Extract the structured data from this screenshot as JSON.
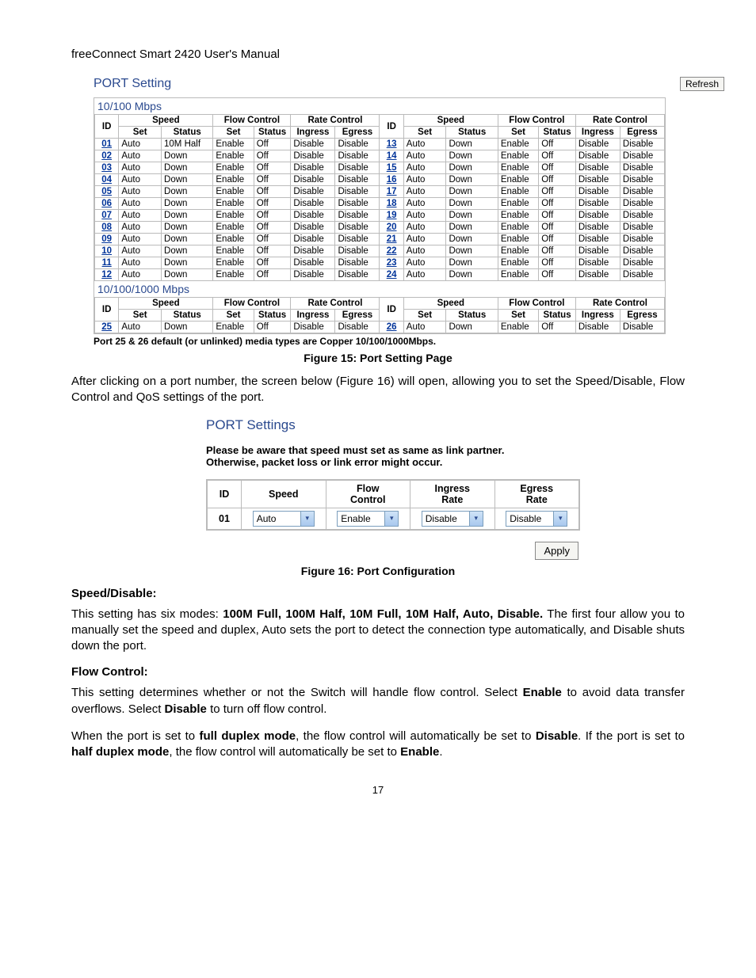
{
  "manual_title": "freeConnect Smart 2420 User's Manual",
  "port_setting": {
    "heading": "PORT Setting",
    "refresh_label": "Refresh",
    "section1_title": "10/100 Mbps",
    "section2_title": "10/100/1000 Mbps",
    "headers": {
      "id": "ID",
      "speed": "Speed",
      "flow_control": "Flow Control",
      "rate_control": "Rate Control",
      "set": "Set",
      "status": "Status",
      "ingress": "Ingress",
      "egress": "Egress"
    },
    "rows_left": [
      {
        "id": "01",
        "set": "Auto",
        "status": "10M Half",
        "fc_set": "Enable",
        "fc_status": "Off",
        "ingress": "Disable",
        "egress": "Disable"
      },
      {
        "id": "02",
        "set": "Auto",
        "status": "Down",
        "fc_set": "Enable",
        "fc_status": "Off",
        "ingress": "Disable",
        "egress": "Disable"
      },
      {
        "id": "03",
        "set": "Auto",
        "status": "Down",
        "fc_set": "Enable",
        "fc_status": "Off",
        "ingress": "Disable",
        "egress": "Disable"
      },
      {
        "id": "04",
        "set": "Auto",
        "status": "Down",
        "fc_set": "Enable",
        "fc_status": "Off",
        "ingress": "Disable",
        "egress": "Disable"
      },
      {
        "id": "05",
        "set": "Auto",
        "status": "Down",
        "fc_set": "Enable",
        "fc_status": "Off",
        "ingress": "Disable",
        "egress": "Disable"
      },
      {
        "id": "06",
        "set": "Auto",
        "status": "Down",
        "fc_set": "Enable",
        "fc_status": "Off",
        "ingress": "Disable",
        "egress": "Disable"
      },
      {
        "id": "07",
        "set": "Auto",
        "status": "Down",
        "fc_set": "Enable",
        "fc_status": "Off",
        "ingress": "Disable",
        "egress": "Disable"
      },
      {
        "id": "08",
        "set": "Auto",
        "status": "Down",
        "fc_set": "Enable",
        "fc_status": "Off",
        "ingress": "Disable",
        "egress": "Disable"
      },
      {
        "id": "09",
        "set": "Auto",
        "status": "Down",
        "fc_set": "Enable",
        "fc_status": "Off",
        "ingress": "Disable",
        "egress": "Disable"
      },
      {
        "id": "10",
        "set": "Auto",
        "status": "Down",
        "fc_set": "Enable",
        "fc_status": "Off",
        "ingress": "Disable",
        "egress": "Disable"
      },
      {
        "id": "11",
        "set": "Auto",
        "status": "Down",
        "fc_set": "Enable",
        "fc_status": "Off",
        "ingress": "Disable",
        "egress": "Disable"
      },
      {
        "id": "12",
        "set": "Auto",
        "status": "Down",
        "fc_set": "Enable",
        "fc_status": "Off",
        "ingress": "Disable",
        "egress": "Disable"
      }
    ],
    "rows_right": [
      {
        "id": "13",
        "set": "Auto",
        "status": "Down",
        "fc_set": "Enable",
        "fc_status": "Off",
        "ingress": "Disable",
        "egress": "Disable"
      },
      {
        "id": "14",
        "set": "Auto",
        "status": "Down",
        "fc_set": "Enable",
        "fc_status": "Off",
        "ingress": "Disable",
        "egress": "Disable"
      },
      {
        "id": "15",
        "set": "Auto",
        "status": "Down",
        "fc_set": "Enable",
        "fc_status": "Off",
        "ingress": "Disable",
        "egress": "Disable"
      },
      {
        "id": "16",
        "set": "Auto",
        "status": "Down",
        "fc_set": "Enable",
        "fc_status": "Off",
        "ingress": "Disable",
        "egress": "Disable"
      },
      {
        "id": "17",
        "set": "Auto",
        "status": "Down",
        "fc_set": "Enable",
        "fc_status": "Off",
        "ingress": "Disable",
        "egress": "Disable"
      },
      {
        "id": "18",
        "set": "Auto",
        "status": "Down",
        "fc_set": "Enable",
        "fc_status": "Off",
        "ingress": "Disable",
        "egress": "Disable"
      },
      {
        "id": "19",
        "set": "Auto",
        "status": "Down",
        "fc_set": "Enable",
        "fc_status": "Off",
        "ingress": "Disable",
        "egress": "Disable"
      },
      {
        "id": "20",
        "set": "Auto",
        "status": "Down",
        "fc_set": "Enable",
        "fc_status": "Off",
        "ingress": "Disable",
        "egress": "Disable"
      },
      {
        "id": "21",
        "set": "Auto",
        "status": "Down",
        "fc_set": "Enable",
        "fc_status": "Off",
        "ingress": "Disable",
        "egress": "Disable"
      },
      {
        "id": "22",
        "set": "Auto",
        "status": "Down",
        "fc_set": "Enable",
        "fc_status": "Off",
        "ingress": "Disable",
        "egress": "Disable"
      },
      {
        "id": "23",
        "set": "Auto",
        "status": "Down",
        "fc_set": "Enable",
        "fc_status": "Off",
        "ingress": "Disable",
        "egress": "Disable"
      },
      {
        "id": "24",
        "set": "Auto",
        "status": "Down",
        "fc_set": "Enable",
        "fc_status": "Off",
        "ingress": "Disable",
        "egress": "Disable"
      }
    ],
    "rows2_left": [
      {
        "id": "25",
        "set": "Auto",
        "status": "Down",
        "fc_set": "Enable",
        "fc_status": "Off",
        "ingress": "Disable",
        "egress": "Disable"
      }
    ],
    "rows2_right": [
      {
        "id": "26",
        "set": "Auto",
        "status": "Down",
        "fc_set": "Enable",
        "fc_status": "Off",
        "ingress": "Disable",
        "egress": "Disable"
      }
    ],
    "note": "Port 25 & 26 default (or unlinked) media types are Copper 10/100/1000Mbps.",
    "caption": "Figure 15: Port Setting Page"
  },
  "para1": "After clicking on a port number, the screen below (Figure 16) will open, allowing you to set the Speed/Disable, Flow Control and QoS settings of the port.",
  "port_settings": {
    "heading": "PORT Settings",
    "warning_l1": "Please be aware that speed must set as same as link partner.",
    "warning_l2": "Otherwise, packet loss or link error might occur.",
    "headers": {
      "id": "ID",
      "speed": "Speed",
      "flow": "Flow Control",
      "ingress": "Ingress Rate",
      "egress": "Egress Rate"
    },
    "row": {
      "id": "01",
      "speed": "Auto",
      "flow": "Enable",
      "ingress": "Disable",
      "egress": "Disable"
    },
    "apply_label": "Apply",
    "caption": "Figure 16: Port Configuration"
  },
  "speed_disable": {
    "heading": "Speed/Disable:",
    "text_a": "This setting has six modes: ",
    "text_b": "100M Full, 100M Half, 10M Full, 10M Half, Auto, Disable.",
    "text_c": " The first four allow you to manually set the speed and duplex, Auto sets the port to detect the connection type automatically, and Disable shuts down the port."
  },
  "flow_control": {
    "heading": "Flow Control:",
    "p1_a": "This setting determines whether or not the Switch will handle flow control. Select ",
    "p1_b": "Enable",
    "p1_c": " to avoid data transfer overflows. Select ",
    "p1_d": "Disable",
    "p1_e": " to turn off flow control.",
    "p2_a": "When the port is set to ",
    "p2_b": "full duplex mode",
    "p2_c": ", the flow control will automatically be set to ",
    "p2_d": "Disable",
    "p2_e": ".  If the port is set to ",
    "p2_f": "half duplex mode",
    "p2_g": ", the flow control will automatically be set to ",
    "p2_h": "Enable",
    "p2_i": "."
  },
  "page_number": "17"
}
